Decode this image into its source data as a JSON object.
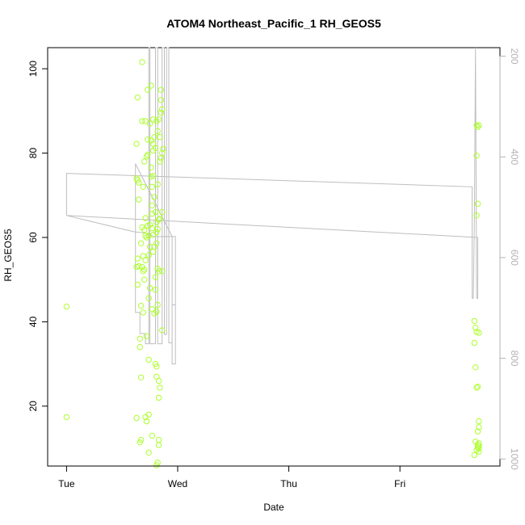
{
  "chart_data": {
    "type": "scatter",
    "title": "ATOM4 Northeast_Pacific_1 RH_GEOS5",
    "xlabel": "Date",
    "ylabel": "RH_GEOS5",
    "x_unit": "days (Tue 00:00 = 0)",
    "xlim": [
      -0.17,
      3.9
    ],
    "ylim": [
      5.8,
      105
    ],
    "x_ticks": [
      {
        "value": 0,
        "label": "Tue"
      },
      {
        "value": 1,
        "label": "Wed"
      },
      {
        "value": 2,
        "label": "Thu"
      },
      {
        "value": 3,
        "label": "Fri"
      }
    ],
    "y_ticks": [
      20,
      40,
      60,
      80,
      100
    ],
    "y2_ticks": [
      200,
      400,
      600,
      800,
      1000
    ],
    "y2_lim": [
      1014,
      183
    ],
    "grid": false,
    "colors": {
      "points": "#ADFF2F",
      "profile_line": "#BEBEBE",
      "axis": "#000000",
      "right_axis": "#B3B3B3"
    },
    "series": [
      {
        "values": [
          [
            0.0,
            43.6
          ],
          [
            0.0,
            17.4
          ],
          [
            0.63,
            82.2
          ],
          [
            0.63,
            74.0
          ],
          [
            0.63,
            53.0
          ],
          [
            0.63,
            17.2
          ],
          [
            0.64,
            93.2
          ],
          [
            0.64,
            73.6
          ],
          [
            0.64,
            55.0
          ],
          [
            0.64,
            48.8
          ],
          [
            0.65,
            73.0
          ],
          [
            0.65,
            69.0
          ],
          [
            0.65,
            53.2
          ],
          [
            0.66,
            36.0
          ],
          [
            0.66,
            34.0
          ],
          [
            0.66,
            11.4
          ],
          [
            0.67,
            58.6
          ],
          [
            0.67,
            43.8
          ],
          [
            0.67,
            26.8
          ],
          [
            0.67,
            12.0
          ],
          [
            0.68,
            101.6
          ],
          [
            0.68,
            87.6
          ],
          [
            0.68,
            62.4
          ],
          [
            0.68,
            53.0
          ],
          [
            0.69,
            72.0
          ],
          [
            0.69,
            55.6
          ],
          [
            0.69,
            52.0
          ],
          [
            0.69,
            42.2
          ],
          [
            0.7,
            78.0
          ],
          [
            0.7,
            61.8
          ],
          [
            0.7,
            52.4
          ],
          [
            0.7,
            50.0
          ],
          [
            0.71,
            87.6
          ],
          [
            0.71,
            64.6
          ],
          [
            0.71,
            60.4
          ],
          [
            0.71,
            54.6
          ],
          [
            0.71,
            17.4
          ],
          [
            0.72,
            79.2
          ],
          [
            0.72,
            60.0
          ],
          [
            0.72,
            36.6
          ],
          [
            0.72,
            16.4
          ],
          [
            0.73,
            95.0
          ],
          [
            0.73,
            83.2
          ],
          [
            0.73,
            79.6
          ],
          [
            0.73,
            62.8
          ],
          [
            0.74,
            60.4
          ],
          [
            0.74,
            55.8
          ],
          [
            0.74,
            45.6
          ],
          [
            0.74,
            31.0
          ],
          [
            0.74,
            18.0
          ],
          [
            0.74,
            9.0
          ],
          [
            0.75,
            87.0
          ],
          [
            0.75,
            63.0
          ],
          [
            0.75,
            57.8
          ],
          [
            0.75,
            48.0
          ],
          [
            0.76,
            96.0
          ],
          [
            0.76,
            83.0
          ],
          [
            0.76,
            76.6
          ],
          [
            0.76,
            74.4
          ],
          [
            0.77,
            72.0
          ],
          [
            0.77,
            67.6
          ],
          [
            0.77,
            65.6
          ],
          [
            0.77,
            62.2
          ],
          [
            0.77,
            43.0
          ],
          [
            0.77,
            13.0
          ],
          [
            0.78,
            88.0
          ],
          [
            0.78,
            82.2
          ],
          [
            0.78,
            80.6
          ],
          [
            0.78,
            74.6
          ],
          [
            0.78,
            60.6
          ],
          [
            0.78,
            56.6
          ],
          [
            0.79,
            83.8
          ],
          [
            0.79,
            69.6
          ],
          [
            0.79,
            57.8
          ],
          [
            0.79,
            42.0
          ],
          [
            0.8,
            81.2
          ],
          [
            0.8,
            66.0
          ],
          [
            0.8,
            50.6
          ],
          [
            0.8,
            47.6
          ],
          [
            0.8,
            30.0
          ],
          [
            0.81,
            87.6
          ],
          [
            0.81,
            63.6
          ],
          [
            0.81,
            61.2
          ],
          [
            0.81,
            58.6
          ],
          [
            0.81,
            42.4
          ],
          [
            0.81,
            29.4
          ],
          [
            0.81,
            27.0
          ],
          [
            0.81,
            6.0
          ],
          [
            0.82,
            85.2
          ],
          [
            0.82,
            72.6
          ],
          [
            0.82,
            62.0
          ],
          [
            0.82,
            52.6
          ],
          [
            0.82,
            44.0
          ],
          [
            0.82,
            6.6
          ],
          [
            0.83,
            88.0
          ],
          [
            0.83,
            64.2
          ],
          [
            0.83,
            52.0
          ],
          [
            0.83,
            26.0
          ],
          [
            0.83,
            22.0
          ],
          [
            0.83,
            12.0
          ],
          [
            0.83,
            10.8
          ],
          [
            0.84,
            83.8
          ],
          [
            0.84,
            78.0
          ],
          [
            0.84,
            64.4
          ],
          [
            0.84,
            24.4
          ],
          [
            0.85,
            95.0
          ],
          [
            0.85,
            92.6
          ],
          [
            0.85,
            89.6
          ],
          [
            0.85,
            78.8
          ],
          [
            0.86,
            90.4
          ],
          [
            0.86,
            80.0
          ],
          [
            0.86,
            66.0
          ],
          [
            0.86,
            52.0
          ],
          [
            0.86,
            38.0
          ],
          [
            0.87,
            81.0
          ],
          [
            3.67,
            40.2
          ],
          [
            3.67,
            35.0
          ],
          [
            3.67,
            8.4
          ],
          [
            3.68,
            38.6
          ],
          [
            3.68,
            29.2
          ],
          [
            3.68,
            11.6
          ],
          [
            3.69,
            86.6
          ],
          [
            3.69,
            79.4
          ],
          [
            3.69,
            65.2
          ],
          [
            3.69,
            37.6
          ],
          [
            3.69,
            24.4
          ],
          [
            3.69,
            9.6
          ],
          [
            3.7,
            86.2
          ],
          [
            3.7,
            68.0
          ],
          [
            3.7,
            24.6
          ],
          [
            3.7,
            14.0
          ],
          [
            3.7,
            10.8
          ],
          [
            3.7,
            10.2
          ],
          [
            3.71,
            86.6
          ],
          [
            3.71,
            37.4
          ],
          [
            3.71,
            16.4
          ],
          [
            3.71,
            15.0
          ],
          [
            3.71,
            11.2
          ],
          [
            3.71,
            10.6
          ],
          [
            3.71,
            10.0
          ],
          [
            3.71,
            9.2
          ]
        ]
      }
    ],
    "profile_line": [
      [
        0.0,
        75.2
      ],
      [
        0.0,
        65.2
      ],
      [
        0.0,
        75.2
      ],
      [
        3.65,
        72.0
      ],
      [
        3.65,
        45.6
      ],
      [
        3.66,
        45.6
      ],
      [
        3.67,
        65.0
      ],
      [
        3.68,
        105.0
      ],
      [
        3.69,
        45.6
      ],
      [
        3.7,
        45.6
      ],
      [
        3.7,
        60.0
      ],
      [
        0.0,
        65.2
      ],
      [
        0.6,
        61.4
      ],
      [
        0.72,
        61.0
      ],
      [
        0.79,
        60.2
      ],
      [
        0.98,
        60.2
      ],
      [
        0.98,
        30.0
      ],
      [
        0.95,
        30.0
      ],
      [
        0.95,
        60.2
      ],
      [
        0.62,
        77.5
      ],
      [
        0.62,
        42.2
      ],
      [
        0.66,
        42.2
      ],
      [
        0.66,
        37.2
      ],
      [
        0.71,
        37.2
      ],
      [
        0.71,
        34.8
      ],
      [
        0.74,
        34.8
      ],
      [
        0.74,
        105.0
      ],
      [
        0.75,
        105.0
      ],
      [
        0.75,
        34.8
      ],
      [
        0.8,
        34.8
      ],
      [
        0.8,
        105.0
      ],
      [
        0.82,
        105.0
      ],
      [
        0.82,
        34.8
      ],
      [
        0.86,
        34.8
      ],
      [
        0.86,
        105.0
      ],
      [
        0.88,
        105.0
      ],
      [
        0.88,
        37.0
      ],
      [
        0.9,
        37.0
      ],
      [
        0.9,
        105.0
      ],
      [
        0.92,
        105.0
      ],
      [
        0.92,
        35.0
      ],
      [
        0.95,
        35.0
      ],
      [
        0.95,
        44.0
      ],
      [
        0.98,
        44.0
      ]
    ]
  }
}
